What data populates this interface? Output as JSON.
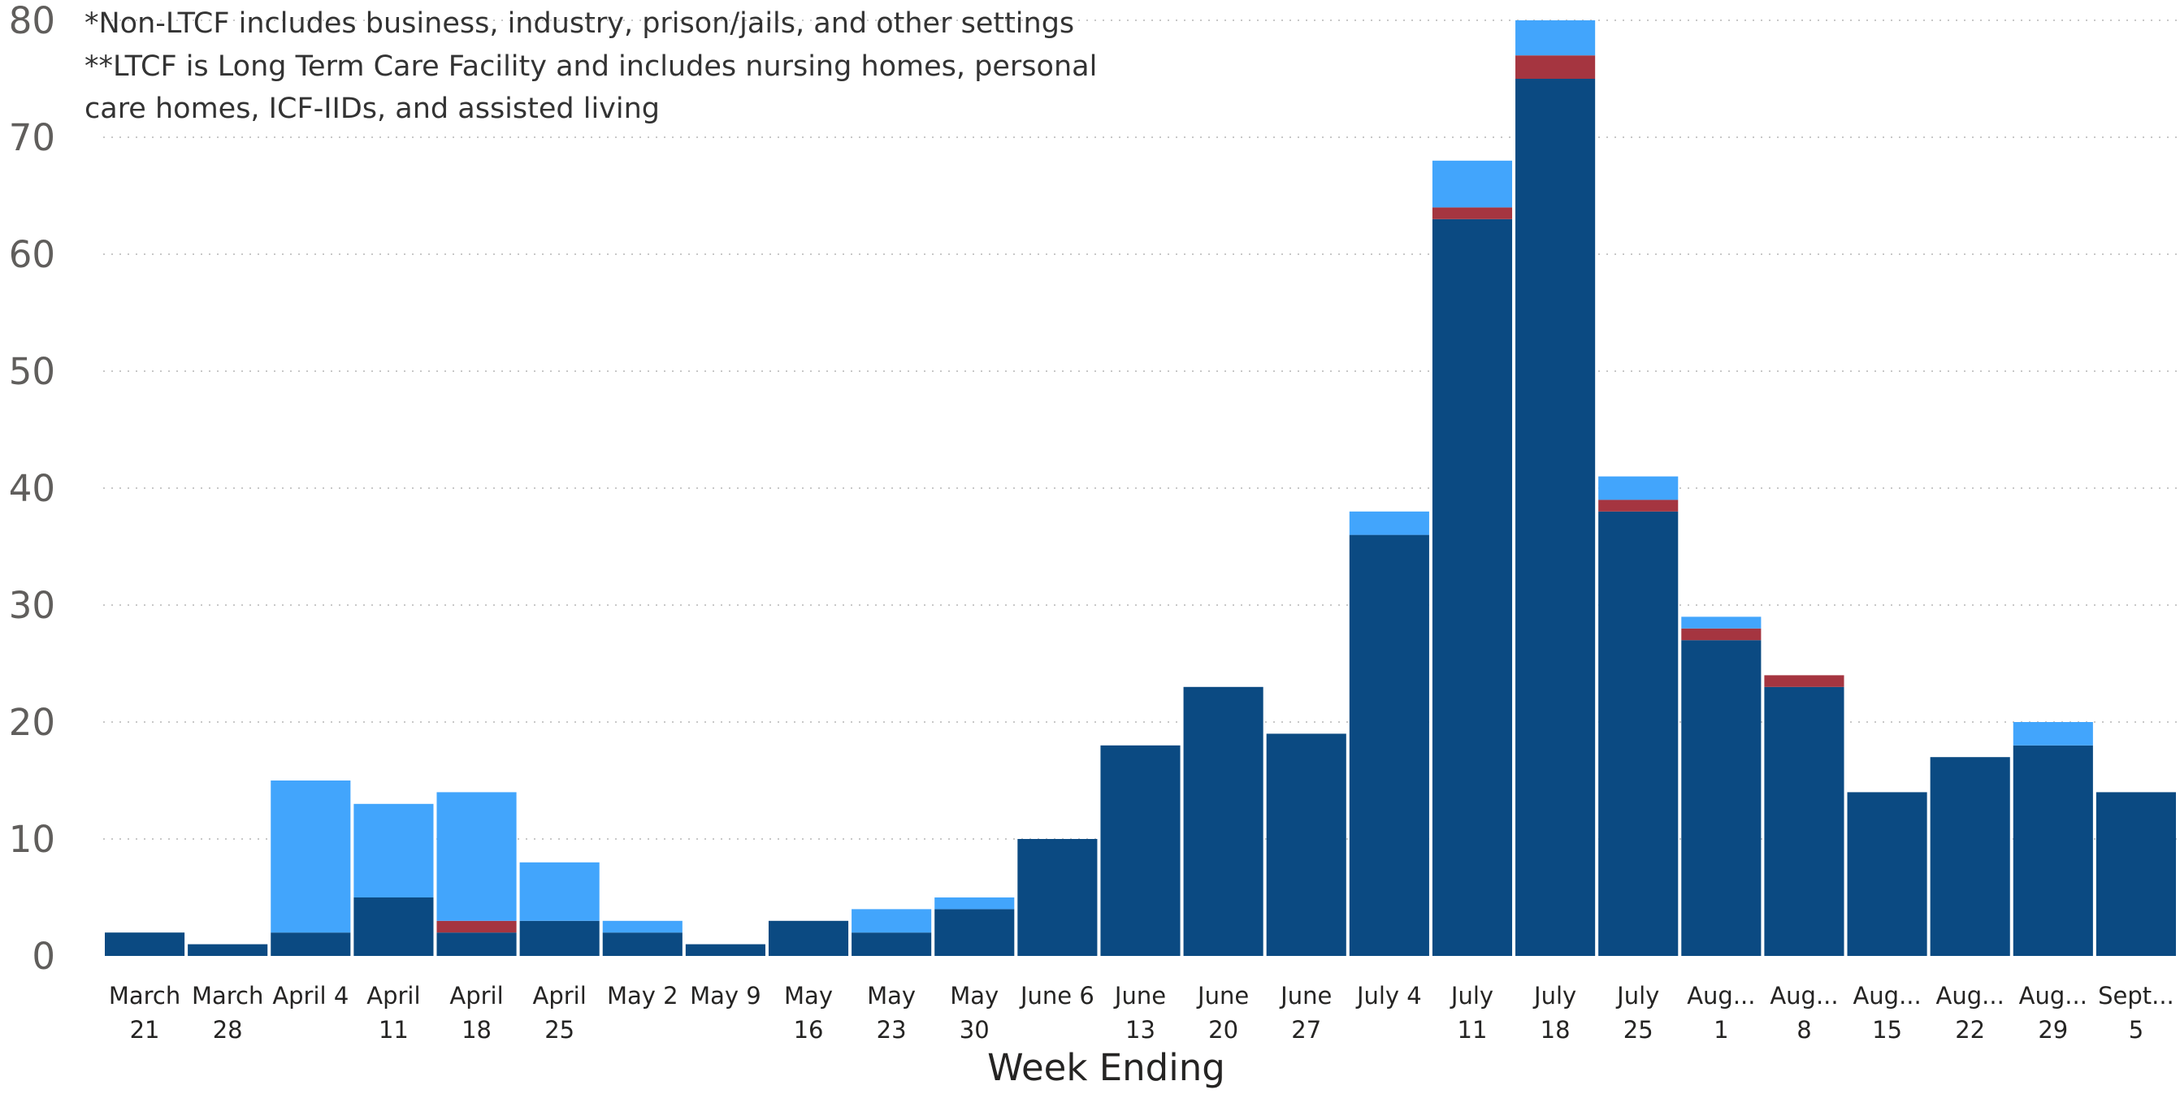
{
  "notes": {
    "line1": "*Non-LTCF includes business, industry, prison/jails, and other settings",
    "line2": "**LTCF is Long Term Care Facility and includes nursing homes, personal",
    "line3": "care homes, ICF-IIDs, and assisted living"
  },
  "chart_data": {
    "type": "bar",
    "stacked": true,
    "xlabel": "Week Ending",
    "ylabel": "",
    "ylim": [
      0,
      80
    ],
    "yticks": [
      0,
      10,
      20,
      30,
      40,
      50,
      60,
      70,
      80
    ],
    "grid": true,
    "categories": [
      "March 21",
      "March 28",
      "April 4",
      "April 11",
      "April 18",
      "April 25",
      "May 2",
      "May 9",
      "May 16",
      "May 23",
      "May 30",
      "June 6",
      "June 13",
      "June 20",
      "June 27",
      "July 4",
      "July 11",
      "July 18",
      "July 25",
      "August 1",
      "August 8",
      "August 15",
      "August 22",
      "August 29",
      "September 5"
    ],
    "category_display": [
      "March\n21",
      "March\n28",
      "April 4",
      "April\n11",
      "April\n18",
      "April\n25",
      "May 2",
      "May 9",
      "May\n16",
      "May\n23",
      "May\n30",
      "June 6",
      "June\n13",
      "June\n20",
      "June\n27",
      "July 4",
      "July\n11",
      "July\n18",
      "July\n25",
      "Aug...\n1",
      "Aug...\n8",
      "Aug...\n15",
      "Aug...\n22",
      "Aug...\n29",
      "Sept...\n5"
    ],
    "series": [
      {
        "color": "#0b4a82",
        "values": [
          2,
          1,
          2,
          5,
          2,
          3,
          2,
          1,
          3,
          2,
          4,
          10,
          18,
          23,
          19,
          36,
          63,
          75,
          38,
          27,
          23,
          14,
          17,
          18,
          14
        ]
      },
      {
        "color": "#a53540",
        "values": [
          0,
          0,
          0,
          0,
          1,
          0,
          0,
          0,
          0,
          0,
          0,
          0,
          0,
          0,
          0,
          0,
          1,
          2,
          1,
          1,
          1,
          0,
          0,
          0,
          0
        ]
      },
      {
        "color": "#42a5fc",
        "values": [
          0,
          0,
          13,
          8,
          11,
          5,
          1,
          0,
          0,
          2,
          1,
          0,
          0,
          0,
          0,
          2,
          4,
          3,
          2,
          1,
          0,
          0,
          0,
          2,
          0
        ]
      }
    ]
  }
}
